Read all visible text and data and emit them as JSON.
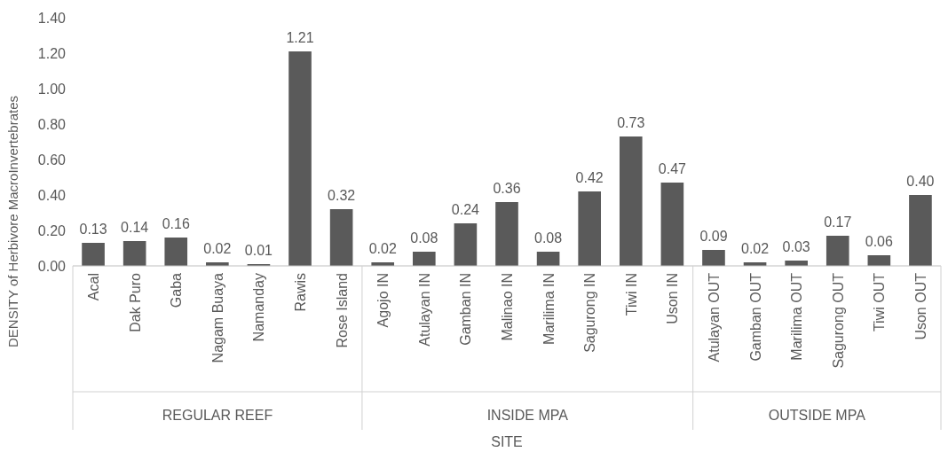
{
  "chart_data": {
    "type": "bar",
    "xlabel": "SITE",
    "ylabel": "DENSITY of Herbivore MacroInvertebrates",
    "categories": [
      "Acal",
      "Dak Puro",
      "Gaba",
      "Nagam Buaya",
      "Namanday",
      "Rawis",
      "Rose Island",
      "Agojo IN",
      "Atulayan IN",
      "Gamban IN",
      "Malinao IN",
      "Marilima IN",
      "Sagurong IN",
      "Tiwi IN",
      "Uson IN",
      "Atulayan OUT",
      "Gamban OUT",
      "Marilima OUT",
      "Sagurong OUT",
      "Tiwi OUT",
      "Uson OUT"
    ],
    "values": [
      0.13,
      0.14,
      0.16,
      0.02,
      0.01,
      1.21,
      0.32,
      0.02,
      0.08,
      0.24,
      0.36,
      0.08,
      0.42,
      0.73,
      0.47,
      0.09,
      0.02,
      0.03,
      0.17,
      0.06,
      0.4
    ],
    "value_labels": [
      "0.13",
      "0.14",
      "0.16",
      "0.02",
      "0.01",
      "1.21",
      "0.32",
      "0.02",
      "0.08",
      "0.24",
      "0.36",
      "0.08",
      "0.42",
      "0.73",
      "0.47",
      "0.09",
      "0.02",
      "0.03",
      "0.17",
      "0.06",
      "0.40"
    ],
    "color": "#5a5a5a",
    "ylim": [
      0,
      1.4
    ],
    "yticks": [
      {
        "value": 0,
        "label": "0.00"
      },
      {
        "value": 0.2,
        "label": "0.20"
      },
      {
        "value": 0.4,
        "label": "0.40"
      },
      {
        "value": 0.6,
        "label": "0.60"
      },
      {
        "value": 0.8,
        "label": "0.80"
      },
      {
        "value": 1.0,
        "label": "1.00"
      },
      {
        "value": 1.2,
        "label": "1.20"
      },
      {
        "value": 1.4,
        "label": "1.40"
      }
    ],
    "grid": false,
    "annotations": [
      "REGULAR REEF",
      "INSIDE MPA",
      "OUTSIDE MPA"
    ]
  }
}
